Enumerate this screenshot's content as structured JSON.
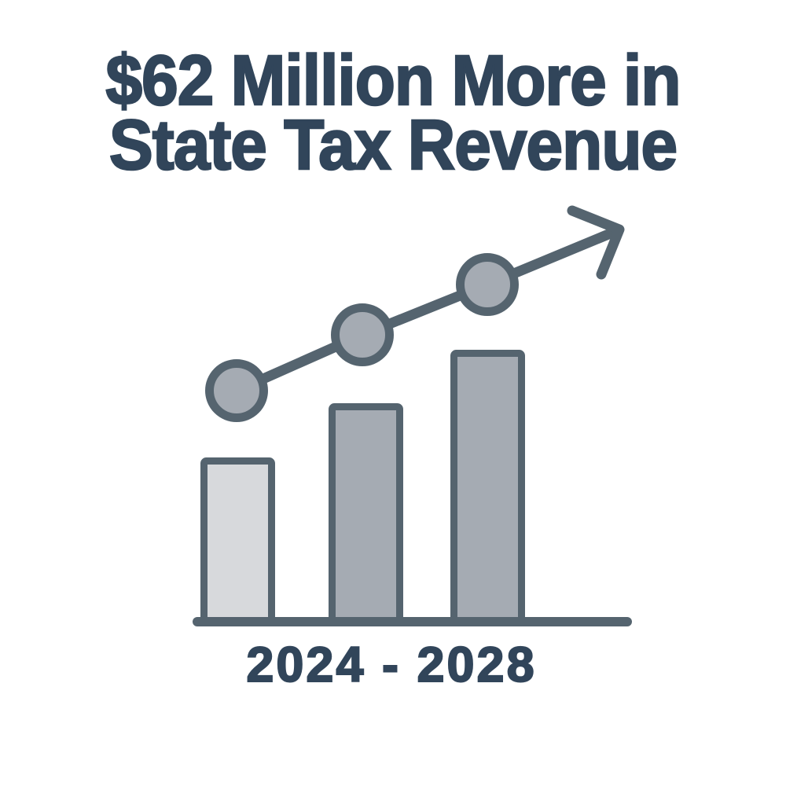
{
  "page": {
    "background": "#ffffff"
  },
  "title": {
    "line1": "$62 Million More in",
    "line2": "State Tax Revenue",
    "color": "#31455a"
  },
  "x_axis_label": "2024 - 2028",
  "icon": {
    "name": "rising-bar-chart-with-trend-arrow",
    "stroke_color": "#55646f",
    "bar_fill_light": "#d7d9dc",
    "bar_fill_mid": "#a5abb3",
    "marker_fill": "#a5abb3"
  },
  "chart_data": {
    "type": "bar",
    "title": "$62 Million More in State Tax Revenue",
    "xlabel": "2024 - 2028",
    "bar_count": 3,
    "values": [
      215,
      284,
      352
    ],
    "value_units": "relative height (decorative infographic, no numeric axis shown)",
    "trend": {
      "type": "line-with-arrow",
      "direction": "increasing",
      "points": [
        [
          301,
          497
        ],
        [
          461,
          426
        ],
        [
          620,
          362
        ]
      ],
      "line_end": [
        779,
        296
      ],
      "arrowhead": [
        [
          728,
          268
        ],
        [
          788,
          292
        ],
        [
          765,
          349
        ]
      ]
    },
    "legend": "none",
    "grid": "off"
  }
}
